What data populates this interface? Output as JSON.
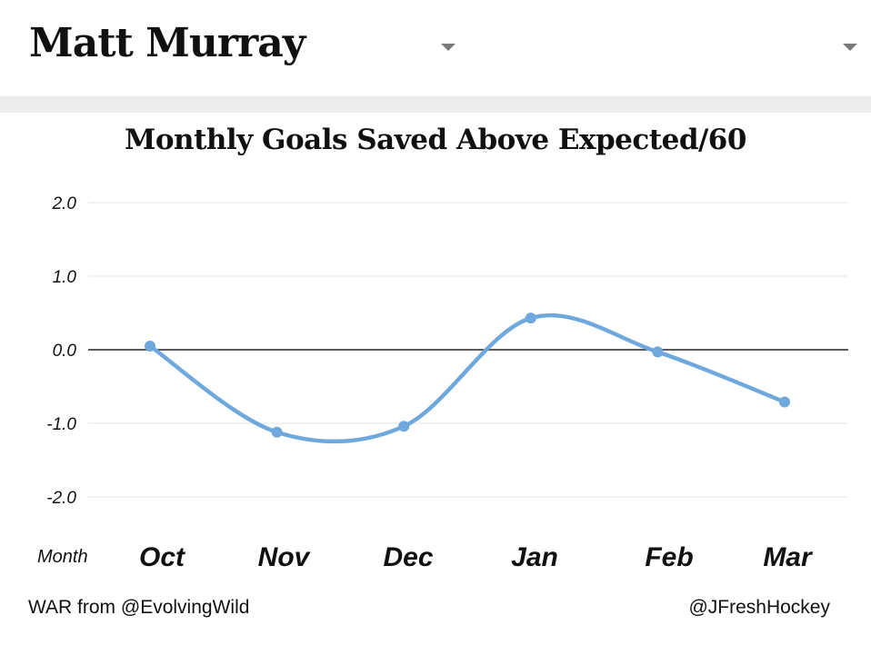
{
  "header": {
    "player_name": "Matt Murray"
  },
  "chart_data": {
    "type": "line",
    "title": "Monthly Goals Saved Above Expected/60",
    "xlabel": "Month",
    "ylabel": "",
    "categories": [
      "Oct",
      "Nov",
      "Dec",
      "Jan",
      "Feb",
      "Mar"
    ],
    "series": [
      {
        "values": [
          0.05,
          -1.12,
          -1.04,
          0.43,
          -0.03,
          -0.71
        ],
        "color": "#6fa8dc"
      }
    ],
    "ylim": [
      -2.0,
      2.0
    ],
    "yticks": [
      "2.0",
      "1.0",
      "0.0",
      "-1.0",
      "-2.0"
    ],
    "ytick_values": [
      2,
      1,
      0,
      -1,
      -2
    ],
    "grid": true,
    "zero_line": true,
    "curve": "smooth"
  },
  "footer": {
    "left": "WAR from @EvolvingWild",
    "right": "@JFreshHockey"
  }
}
